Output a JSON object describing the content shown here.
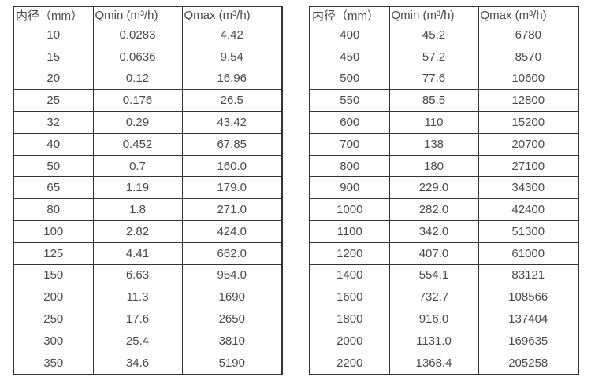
{
  "colors": {
    "border": "#333333",
    "text": "#4a4a4a",
    "background": "#ffffff"
  },
  "tables": [
    {
      "name": "flow-spec-table-small-diameters",
      "headers": [
        "内径（mm）",
        "Qmin (m³/h)",
        "Qmax (m³/h)"
      ],
      "rows": [
        [
          "10",
          "0.0283",
          "4.42"
        ],
        [
          "15",
          "0.0636",
          "9.54"
        ],
        [
          "20",
          "0.12",
          "16.96"
        ],
        [
          "25",
          "0.176",
          "26.5"
        ],
        [
          "32",
          "0.29",
          "43.42"
        ],
        [
          "40",
          "0.452",
          "67.85"
        ],
        [
          "50",
          "0.7",
          "160.0"
        ],
        [
          "65",
          "1.19",
          "179.0"
        ],
        [
          "80",
          "1.8",
          "271.0"
        ],
        [
          "100",
          "2.82",
          "424.0"
        ],
        [
          "125",
          "4.41",
          "662.0"
        ],
        [
          "150",
          "6.63",
          "954.0"
        ],
        [
          "200",
          "11.3",
          "1690"
        ],
        [
          "250",
          "17.6",
          "2650"
        ],
        [
          "300",
          "25.4",
          "3810"
        ],
        [
          "350",
          "34.6",
          "5190"
        ]
      ]
    },
    {
      "name": "flow-spec-table-large-diameters",
      "headers": [
        "内径（mm）",
        "Qmin (m³/h)",
        "Qmax (m³/h)"
      ],
      "rows": [
        [
          "400",
          "45.2",
          "6780"
        ],
        [
          "450",
          "57.2",
          "8570"
        ],
        [
          "500",
          "77.6",
          "10600"
        ],
        [
          "550",
          "85.5",
          "12800"
        ],
        [
          "600",
          "110",
          "15200"
        ],
        [
          "700",
          "138",
          "20700"
        ],
        [
          "800",
          "180",
          "27100"
        ],
        [
          "900",
          "229.0",
          "34300"
        ],
        [
          "1000",
          "282.0",
          "42400"
        ],
        [
          "1100",
          "342.0",
          "51300"
        ],
        [
          "1200",
          "407.0",
          "61000"
        ],
        [
          "1400",
          "554.1",
          "83121"
        ],
        [
          "1600",
          "732.7",
          "108566"
        ],
        [
          "1800",
          "916.0",
          "137404"
        ],
        [
          "2000",
          "1131.0",
          "169635"
        ],
        [
          "2200",
          "1368.4",
          "205258"
        ]
      ]
    }
  ]
}
